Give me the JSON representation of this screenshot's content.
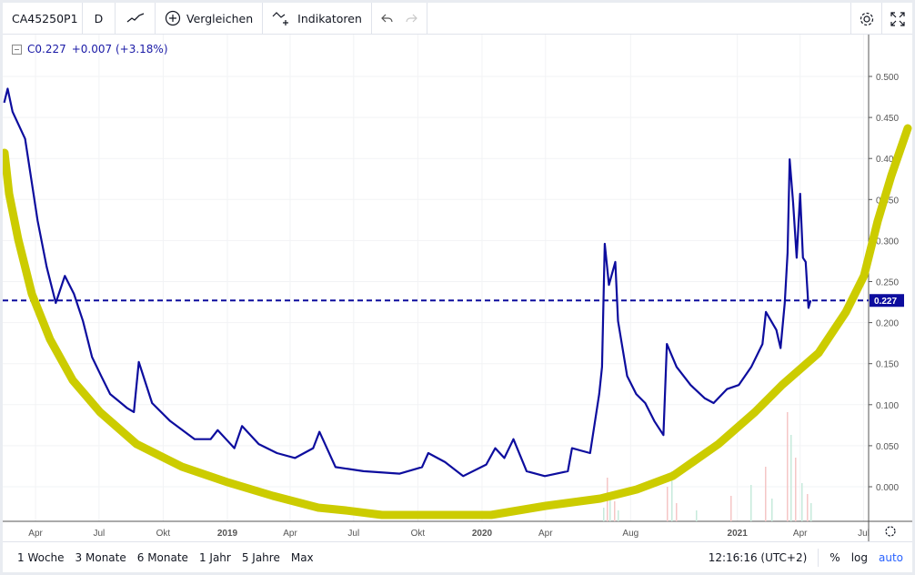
{
  "toolbar": {
    "symbol": "CA45250P1",
    "interval": "D",
    "chart_type_icon": "line-chart-icon",
    "compare_label": "Vergleichen",
    "indicators_label": "Indikatoren"
  },
  "legend": {
    "close": "C0.227",
    "change": "+0.007 (+3.18%)"
  },
  "price_label": "0.227",
  "bottom": {
    "ranges": [
      "1 Woche",
      "3 Monate",
      "6 Monate",
      "1 Jahr",
      "5 Jahre",
      "Max"
    ],
    "time": "12:16:16 (UTC+2)",
    "percent": "%",
    "log": "log",
    "auto": "auto"
  },
  "colors": {
    "line": "#0d0d9e",
    "annotation": "#cccc00",
    "price_label_bg": "#0d0d9e"
  },
  "chart_data": {
    "type": "line",
    "yticks": [
      "0.500",
      "0.450",
      "0.400",
      "0.350",
      "0.300",
      "0.250",
      "0.200",
      "0.150",
      "0.100",
      "0.050",
      "0.000"
    ],
    "ylim": [
      -0.04,
      0.54
    ],
    "xticks": [
      {
        "label": "Apr",
        "date": "2018-04-01"
      },
      {
        "label": "Jul",
        "date": "2018-07-01"
      },
      {
        "label": "Okt",
        "date": "2018-10-01"
      },
      {
        "label": "2019",
        "date": "2019-01-01"
      },
      {
        "label": "Apr",
        "date": "2019-04-01"
      },
      {
        "label": "Jul",
        "date": "2019-07-01"
      },
      {
        "label": "Okt",
        "date": "2019-10-01"
      },
      {
        "label": "2020",
        "date": "2020-01-01"
      },
      {
        "label": "Apr",
        "date": "2020-04-01"
      },
      {
        "label": "Aug",
        "date": "2020-08-01"
      },
      {
        "label": "2021",
        "date": "2021-01-01"
      },
      {
        "label": "Apr",
        "date": "2021-04-01"
      },
      {
        "label": "Jul",
        "date": "2021-07-01"
      }
    ],
    "last_price": 0.227,
    "grid": true,
    "points": [
      [
        "2018-02-15",
        0.468
      ],
      [
        "2018-02-20",
        0.485
      ],
      [
        "2018-02-27",
        0.457
      ],
      [
        "2018-03-17",
        0.424
      ],
      [
        "2018-04-04",
        0.324
      ],
      [
        "2018-04-17",
        0.268
      ],
      [
        "2018-04-30",
        0.224
      ],
      [
        "2018-05-13",
        0.257
      ],
      [
        "2018-05-26",
        0.235
      ],
      [
        "2018-06-08",
        0.202
      ],
      [
        "2018-06-21",
        0.158
      ],
      [
        "2018-07-04",
        0.135
      ],
      [
        "2018-07-17",
        0.113
      ],
      [
        "2018-08-10",
        0.096
      ],
      [
        "2018-08-20",
        0.091
      ],
      [
        "2018-08-27",
        0.152
      ],
      [
        "2018-09-15",
        0.102
      ],
      [
        "2018-10-11",
        0.08
      ],
      [
        "2018-11-15",
        0.058
      ],
      [
        "2018-12-08",
        0.058
      ],
      [
        "2018-12-18",
        0.069
      ],
      [
        "2019-01-11",
        0.047
      ],
      [
        "2019-01-22",
        0.074
      ],
      [
        "2019-02-15",
        0.052
      ],
      [
        "2019-03-13",
        0.041
      ],
      [
        "2019-04-08",
        0.035
      ],
      [
        "2019-05-04",
        0.047
      ],
      [
        "2019-05-13",
        0.067
      ],
      [
        "2019-06-05",
        0.024
      ],
      [
        "2019-07-15",
        0.019
      ],
      [
        "2019-09-05",
        0.016
      ],
      [
        "2019-10-07",
        0.024
      ],
      [
        "2019-10-16",
        0.041
      ],
      [
        "2019-11-09",
        0.03
      ],
      [
        "2019-12-05",
        0.013
      ],
      [
        "2020-01-07",
        0.027
      ],
      [
        "2020-01-20",
        0.047
      ],
      [
        "2020-02-02",
        0.035
      ],
      [
        "2020-02-15",
        0.058
      ],
      [
        "2020-03-05",
        0.019
      ],
      [
        "2020-03-31",
        0.013
      ],
      [
        "2020-05-03",
        0.019
      ],
      [
        "2020-05-09",
        0.047
      ],
      [
        "2020-06-04",
        0.041
      ],
      [
        "2020-06-17",
        0.113
      ],
      [
        "2020-06-21",
        0.146
      ],
      [
        "2020-06-25",
        0.296
      ],
      [
        "2020-07-01",
        0.246
      ],
      [
        "2020-07-10",
        0.274
      ],
      [
        "2020-07-14",
        0.202
      ],
      [
        "2020-07-27",
        0.135
      ],
      [
        "2020-08-09",
        0.113
      ],
      [
        "2020-08-22",
        0.102
      ],
      [
        "2020-09-04",
        0.08
      ],
      [
        "2020-09-17",
        0.063
      ],
      [
        "2020-09-22",
        0.174
      ],
      [
        "2020-10-06",
        0.146
      ],
      [
        "2020-10-26",
        0.124
      ],
      [
        "2020-11-15",
        0.108
      ],
      [
        "2020-11-28",
        0.102
      ],
      [
        "2020-12-17",
        0.119
      ],
      [
        "2021-01-03",
        0.124
      ],
      [
        "2021-01-21",
        0.146
      ],
      [
        "2021-02-06",
        0.174
      ],
      [
        "2021-02-11",
        0.213
      ],
      [
        "2021-02-26",
        0.191
      ],
      [
        "2021-03-04",
        0.169
      ],
      [
        "2021-03-10",
        0.224
      ],
      [
        "2021-03-14",
        0.285
      ],
      [
        "2021-03-17",
        0.399
      ],
      [
        "2021-03-22",
        0.346
      ],
      [
        "2021-03-27",
        0.279
      ],
      [
        "2021-04-01",
        0.357
      ],
      [
        "2021-04-05",
        0.279
      ],
      [
        "2021-04-09",
        0.274
      ],
      [
        "2021-04-13",
        0.218
      ],
      [
        "2021-04-16",
        0.227
      ]
    ]
  }
}
